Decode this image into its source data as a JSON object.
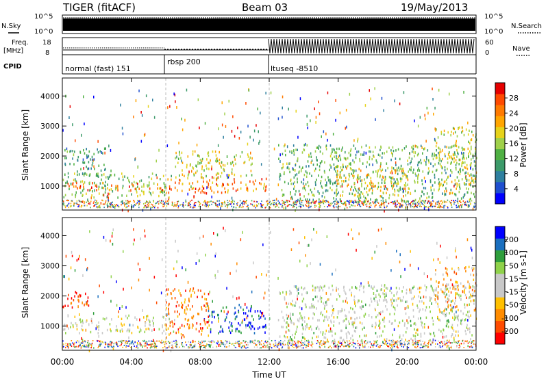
{
  "header": {
    "radar_title": "TIGER (fitACF)",
    "beam": "Beam 03",
    "date": "19/May/2013"
  },
  "sky_panel": {
    "left_label": "N.Sky",
    "right_label": "N.Search",
    "tick_top": "10^5",
    "tick_bottom": "10^0"
  },
  "freq_panel": {
    "left_label_1": "Freq.",
    "left_label_2": "[MHz]",
    "left_ticks": [
      "18",
      "8"
    ],
    "right_label": "Nave",
    "right_ticks": [
      "60",
      "0"
    ]
  },
  "cpid_panel": {
    "label": "CPID",
    "segments": [
      {
        "label": "normal (fast) 151",
        "start_hour": 0,
        "end_hour": 6
      },
      {
        "label": "rbsp 200",
        "start_hour": 6,
        "end_hour": 12
      },
      {
        "label": "ltuseq -8510",
        "start_hour": 12,
        "end_hour": 24
      }
    ]
  },
  "colors": {
    "power_scale": [
      "#0000ff",
      "#1f4fcf",
      "#2e7f9f",
      "#3c9a6a",
      "#4fb043",
      "#9fd04a",
      "#e6d21a",
      "#ffa500",
      "#ff7a00",
      "#ff4a00",
      "#e60000"
    ],
    "velocity_scale": [
      "#ff0000",
      "#ff4c00",
      "#ff8c00",
      "#ffc000",
      "#c8c8c8",
      "#c8c8c8",
      "#8fd24a",
      "#2e9e3c",
      "#1a6fbf",
      "#0000ff"
    ]
  },
  "chart_data": [
    {
      "type": "heatmap",
      "name": "power",
      "ylabel": "Slant Range [km]",
      "xlabel": "",
      "xlim_hours": [
        0,
        24
      ],
      "ylim": [
        200,
        4600
      ],
      "yticks": [
        1000,
        2000,
        3000,
        4000
      ],
      "colorbar": {
        "label": "Power [dB]",
        "range": [
          0,
          32
        ],
        "ticks": [
          "4",
          "8",
          "12",
          "16",
          "20",
          "24",
          "28"
        ]
      },
      "regions": [
        {
          "x0": 0.0,
          "x1": 6.3,
          "y0": 650,
          "y1": 1450,
          "level": 0.45
        },
        {
          "x0": 0.3,
          "x1": 6.0,
          "y0": 900,
          "y1": 1150,
          "level": 0.82
        },
        {
          "x0": 0.0,
          "x1": 2.5,
          "y0": 1400,
          "y1": 2300,
          "level": 0.3
        },
        {
          "x0": 6.0,
          "x1": 11.8,
          "y0": 800,
          "y1": 1300,
          "level": 0.75
        },
        {
          "x0": 6.5,
          "x1": 11.0,
          "y0": 1300,
          "y1": 2200,
          "level": 0.55
        },
        {
          "x0": 7.6,
          "x1": 8.4,
          "y0": 650,
          "y1": 1000,
          "level": 0.92
        },
        {
          "x0": 12.5,
          "x1": 24.0,
          "y0": 500,
          "y1": 2400,
          "level": 0.4
        },
        {
          "x0": 15.8,
          "x1": 20.2,
          "y0": 700,
          "y1": 1700,
          "level": 0.62
        },
        {
          "x0": 21.6,
          "x1": 24.0,
          "y0": 800,
          "y1": 3000,
          "level": 0.55
        }
      ]
    },
    {
      "type": "heatmap",
      "name": "velocity",
      "ylabel": "Slant Range [km]",
      "xlabel": "Time UT",
      "xlim_hours": [
        0,
        24
      ],
      "ylim": [
        200,
        4600
      ],
      "yticks": [
        1000,
        2000,
        3000,
        4000
      ],
      "xticks": [
        "00:00",
        "04:00",
        "08:00",
        "12:00",
        "16:00",
        "20:00",
        "00:00"
      ],
      "colorbar": {
        "label": "Velocity [m s-1]",
        "range": [
          -250,
          250
        ],
        "ticks": [
          "200",
          "100",
          "50",
          "15",
          "-15",
          "-50",
          "-100",
          "-200"
        ]
      },
      "regions": [
        {
          "x0": 0.0,
          "x1": 6.5,
          "y0": 800,
          "y1": 1400,
          "level": 0.5
        },
        {
          "x0": 0.0,
          "x1": 1.5,
          "y0": 1600,
          "y1": 2200,
          "level": 0.05
        },
        {
          "x0": 0.5,
          "x1": 1.0,
          "y0": 3200,
          "y1": 3400,
          "level": 0.05
        },
        {
          "x0": 6.0,
          "x1": 8.5,
          "y0": 650,
          "y1": 2300,
          "level": 0.2
        },
        {
          "x0": 8.5,
          "x1": 11.8,
          "y0": 800,
          "y1": 1800,
          "level": 0.9
        },
        {
          "x0": 12.5,
          "x1": 24.0,
          "y0": 500,
          "y1": 2400,
          "level": 0.55
        },
        {
          "x0": 21.6,
          "x1": 24.0,
          "y0": 1500,
          "y1": 3000,
          "level": 0.3
        }
      ]
    }
  ]
}
